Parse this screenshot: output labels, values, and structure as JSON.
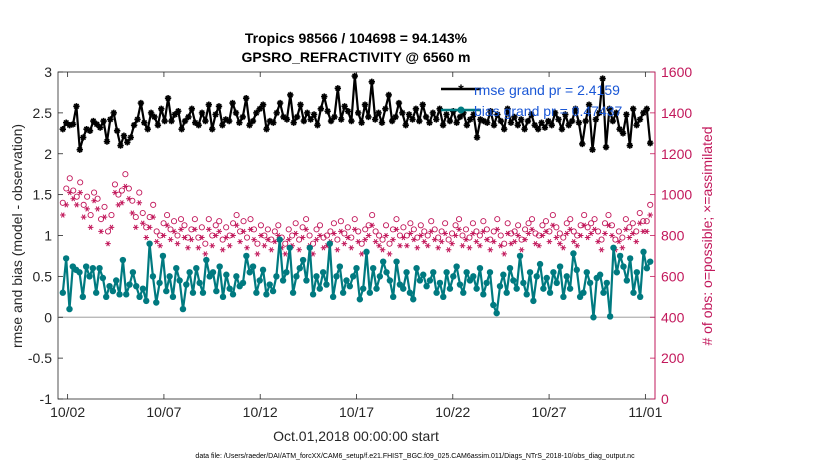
{
  "title_line1": "Tropics 98566 / 104698 = 94.143%",
  "title_line2": "GPSRO_REFRACTIVITY @ 6560 m",
  "footer": "data file: /Users/raeder/DAI/ATM_forcXX/CAM6_setup/f.e21.FHIST_BGC.f09_025.CAM6assim.011/Diags_NTrS_2018-10/obs_diag_output.nc",
  "colors": {
    "rmse": "#000000",
    "bias": "#007a80",
    "obs": "#c2185b",
    "legend_text": "#1a57d6",
    "zero_line": "#b0b0b0"
  },
  "chart_data": {
    "type": "line",
    "xlabel": "Oct.01,2018 00:00:00 start",
    "ylabel_left": "rmse and bias (model - observation)",
    "ylabel_right": "# of obs: o=possible; ×=assimilated",
    "x_ticks": [
      {
        "day": 1,
        "label": "10/02"
      },
      {
        "day": 6,
        "label": "10/07"
      },
      {
        "day": 11,
        "label": "10/12"
      },
      {
        "day": 16,
        "label": "10/17"
      },
      {
        "day": 21,
        "label": "10/22"
      },
      {
        "day": 26,
        "label": "10/27"
      },
      {
        "day": 31,
        "label": "11/01"
      }
    ],
    "xlim": [
      0.5,
      31.5
    ],
    "ylim_left": [
      -1,
      3
    ],
    "yticks_left": [
      -1,
      -0.5,
      0,
      0.5,
      1,
      1.5,
      2,
      2.5,
      3
    ],
    "ylim_right": [
      0,
      1600
    ],
    "yticks_right": [
      0,
      200,
      400,
      600,
      800,
      1000,
      1200,
      1400,
      1600
    ],
    "legend": [
      {
        "label": "rmse grand pr = 2.4159",
        "series": "rmse"
      },
      {
        "label": "bias grand pr = 0.47437",
        "series": "bias"
      }
    ],
    "series": [
      {
        "name": "rmse",
        "axis": "left",
        "values": [
          2.3,
          2.38,
          2.35,
          2.36,
          2.58,
          2.05,
          2.2,
          2.3,
          2.28,
          2.4,
          2.36,
          2.32,
          2.4,
          2.15,
          2.42,
          2.5,
          2.28,
          2.1,
          2.22,
          2.14,
          2.2,
          2.35,
          2.42,
          2.62,
          2.38,
          2.3,
          2.5,
          2.45,
          2.35,
          2.55,
          2.4,
          2.68,
          2.4,
          2.48,
          2.52,
          2.3,
          2.4,
          2.45,
          2.55,
          2.38,
          2.35,
          2.5,
          2.4,
          2.6,
          2.3,
          2.48,
          2.58,
          2.35,
          2.42,
          2.4,
          2.62,
          2.5,
          2.38,
          2.45,
          2.68,
          2.35,
          2.4,
          2.5,
          2.55,
          2.6,
          2.3,
          2.4,
          2.38,
          2.5,
          2.62,
          2.45,
          2.42,
          2.72,
          2.38,
          2.45,
          2.6,
          2.4,
          2.5,
          2.42,
          2.48,
          2.35,
          2.55,
          2.7,
          2.52,
          2.4,
          2.45,
          2.8,
          2.42,
          2.58,
          2.52,
          2.4,
          2.95,
          2.5,
          2.38,
          2.6,
          2.45,
          2.88,
          2.42,
          2.5,
          2.38,
          2.55,
          2.72,
          2.4,
          2.45,
          2.62,
          2.5,
          2.35,
          2.48,
          2.42,
          2.55,
          2.4,
          2.6,
          2.45,
          2.38,
          2.5,
          2.42,
          2.55,
          2.35,
          2.48,
          2.4,
          2.52,
          2.38,
          2.45,
          2.5,
          2.35,
          2.42,
          2.48,
          2.2,
          2.42,
          2.4,
          2.38,
          2.52,
          2.35,
          2.48,
          2.4,
          2.3,
          2.55,
          2.38,
          2.45,
          2.35,
          2.42,
          2.3,
          2.4,
          2.48,
          2.35,
          2.3,
          2.38,
          2.32,
          2.4,
          2.35,
          2.5,
          2.42,
          2.3,
          2.48,
          2.35,
          2.4,
          2.55,
          2.38,
          2.12,
          2.4,
          2.6,
          2.05,
          2.42,
          2.5,
          2.92,
          2.08,
          2.55,
          2.4,
          2.5,
          2.3,
          2.25,
          2.48,
          2.1,
          2.55,
          2.35,
          2.42,
          2.5,
          2.55,
          2.13
        ]
      },
      {
        "name": "bias",
        "axis": "left",
        "values": [
          0.3,
          0.72,
          0.1,
          0.62,
          0.58,
          0.55,
          0.25,
          0.62,
          0.5,
          0.6,
          0.3,
          0.6,
          0.48,
          0.25,
          0.38,
          0.32,
          0.45,
          0.28,
          0.7,
          0.28,
          0.4,
          0.55,
          0.38,
          0.25,
          0.35,
          0.2,
          0.9,
          0.5,
          0.18,
          0.42,
          0.75,
          0.32,
          0.5,
          0.25,
          0.6,
          0.45,
          0.1,
          0.4,
          0.55,
          0.3,
          0.6,
          0.42,
          0.3,
          0.7,
          0.5,
          0.55,
          0.32,
          0.62,
          0.25,
          0.52,
          0.35,
          0.28,
          0.5,
          0.38,
          0.42,
          0.75,
          0.55,
          0.62,
          0.3,
          0.45,
          0.58,
          0.28,
          0.4,
          0.32,
          0.5,
          0.95,
          0.45,
          0.55,
          0.85,
          0.3,
          0.5,
          0.6,
          0.7,
          0.45,
          0.85,
          0.28,
          0.5,
          0.35,
          0.55,
          0.4,
          0.9,
          0.25,
          0.5,
          0.62,
          0.3,
          0.45,
          0.38,
          0.5,
          0.6,
          0.22,
          0.35,
          0.8,
          0.3,
          0.6,
          0.35,
          0.5,
          0.68,
          0.55,
          0.45,
          0.25,
          0.68,
          0.4,
          0.35,
          0.55,
          0.3,
          0.22,
          0.6,
          0.45,
          0.52,
          0.38,
          0.45,
          0.55,
          0.3,
          0.42,
          0.25,
          0.55,
          0.35,
          0.5,
          0.62,
          0.4,
          0.3,
          0.55,
          0.45,
          0.5,
          0.35,
          0.6,
          0.28,
          0.42,
          0.55,
          0.15,
          0.05,
          0.38,
          0.52,
          0.3,
          0.6,
          0.45,
          0.35,
          0.75,
          0.42,
          0.28,
          0.55,
          0.2,
          0.5,
          0.65,
          0.35,
          0.48,
          0.3,
          0.55,
          0.42,
          0.62,
          0.25,
          0.5,
          0.35,
          0.78,
          0.58,
          0.25,
          0.3,
          0.55,
          0.42,
          0.0,
          0.48,
          0.52,
          0.3,
          0.42,
          0.01,
          0.85,
          0.55,
          0.75,
          0.62,
          0.45,
          0.72,
          0.3,
          0.55,
          0.25,
          0.8,
          0.6,
          0.68
        ]
      },
      {
        "name": "obs_possible",
        "axis": "right",
        "marker": "circle",
        "values": [
          960,
          1030,
          1080,
          1020,
          990,
          1060,
          950,
          990,
          900,
          1010,
          980,
          880,
          940,
          820,
          900,
          1050,
          1000,
          1020,
          1100,
          1030,
          970,
          890,
          1010,
          910,
          840,
          890,
          950,
          820,
          800,
          860,
          900,
          830,
          870,
          800,
          880,
          850,
          790,
          830,
          880,
          790,
          840,
          760,
          880,
          800,
          850,
          870,
          780,
          840,
          800,
          860,
          900,
          820,
          870,
          790,
          880,
          830,
          760,
          850,
          800,
          830,
          780,
          820,
          850,
          790,
          760,
          830,
          800,
          860,
          780,
          840,
          880,
          800,
          760,
          830,
          850,
          790,
          800,
          820,
          860,
          780,
          870,
          810,
          840,
          790,
          880,
          820,
          760,
          830,
          850,
          900,
          820,
          800,
          780,
          850,
          760,
          830,
          880,
          800,
          840,
          800,
          860,
          830,
          790,
          850,
          820,
          800,
          870,
          830,
          790,
          820,
          860,
          780,
          810,
          850,
          880,
          800,
          830,
          790,
          860,
          820,
          800,
          870,
          830,
          780,
          820,
          880,
          800,
          760,
          860,
          810,
          820,
          850,
          780,
          830,
          860,
          880,
          810,
          800,
          850,
          870,
          820,
          900,
          840,
          810,
          790,
          860,
          880,
          820,
          800,
          850,
          900,
          840,
          860,
          880,
          820,
          780,
          860,
          900,
          850,
          780,
          820,
          790,
          880,
          840,
          860,
          820,
          910,
          870,
          870,
          950
        ]
      },
      {
        "name": "obs_assimilated",
        "axis": "right",
        "marker": "star",
        "values": [
          900,
          950,
          1010,
          980,
          950,
          1010,
          890,
          930,
          840,
          970,
          930,
          820,
          890,
          760,
          840,
          1010,
          950,
          960,
          1040,
          980,
          910,
          840,
          960,
          860,
          790,
          840,
          890,
          770,
          750,
          800,
          850,
          780,
          820,
          760,
          830,
          790,
          740,
          780,
          830,
          740,
          790,
          710,
          830,
          750,
          800,
          820,
          730,
          790,
          750,
          800,
          850,
          770,
          820,
          740,
          830,
          780,
          710,
          800,
          750,
          780,
          730,
          770,
          800,
          740,
          710,
          780,
          750,
          810,
          730,
          790,
          830,
          750,
          710,
          780,
          800,
          740,
          750,
          770,
          810,
          730,
          820,
          760,
          790,
          740,
          830,
          770,
          710,
          780,
          800,
          850,
          770,
          750,
          730,
          800,
          710,
          780,
          830,
          750,
          790,
          750,
          810,
          780,
          740,
          800,
          770,
          750,
          820,
          780,
          740,
          770,
          810,
          730,
          760,
          800,
          830,
          750,
          780,
          740,
          810,
          770,
          750,
          820,
          780,
          730,
          770,
          830,
          750,
          710,
          810,
          760,
          770,
          800,
          730,
          780,
          810,
          830,
          760,
          750,
          800,
          820,
          770,
          850,
          790,
          760,
          740,
          810,
          830,
          770,
          750,
          800,
          850,
          790,
          810,
          830,
          770,
          730,
          810,
          850,
          800,
          730,
          770,
          740,
          830,
          790,
          810,
          770,
          860,
          820,
          820,
          900
        ]
      }
    ]
  }
}
